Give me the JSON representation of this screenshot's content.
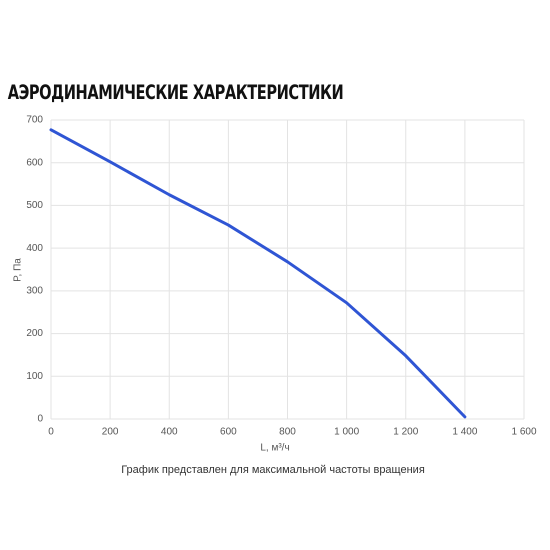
{
  "chart_data": {
    "type": "line",
    "title": "АЭРОДИНАМИЧЕСКИЕ ХАРАКТЕРИСТИКИ",
    "x_label": "L, м³/ч",
    "y_label": "P, Па",
    "note": "График представлен для максимальной частоты вращения",
    "x": [
      0,
      200,
      400,
      600,
      800,
      1000,
      1200,
      1400
    ],
    "series": [
      {
        "name": "P",
        "color": "#2f55d4",
        "values": [
          677,
          602,
          525,
          454,
          368,
          272,
          148,
          5
        ]
      }
    ],
    "xlim": [
      0,
      1600
    ],
    "xticks": [
      0,
      200,
      400,
      600,
      800,
      {
        "value": 1000,
        "label": "1 000"
      },
      {
        "value": 1200,
        "label": "1 200"
      },
      {
        "value": 1400,
        "label": "1 400"
      },
      {
        "value": 1600,
        "label": "1 600"
      }
    ],
    "ylim": [
      0,
      700
    ],
    "yticks": [
      0,
      100,
      200,
      300,
      400,
      500,
      600,
      700
    ],
    "grid": true
  }
}
